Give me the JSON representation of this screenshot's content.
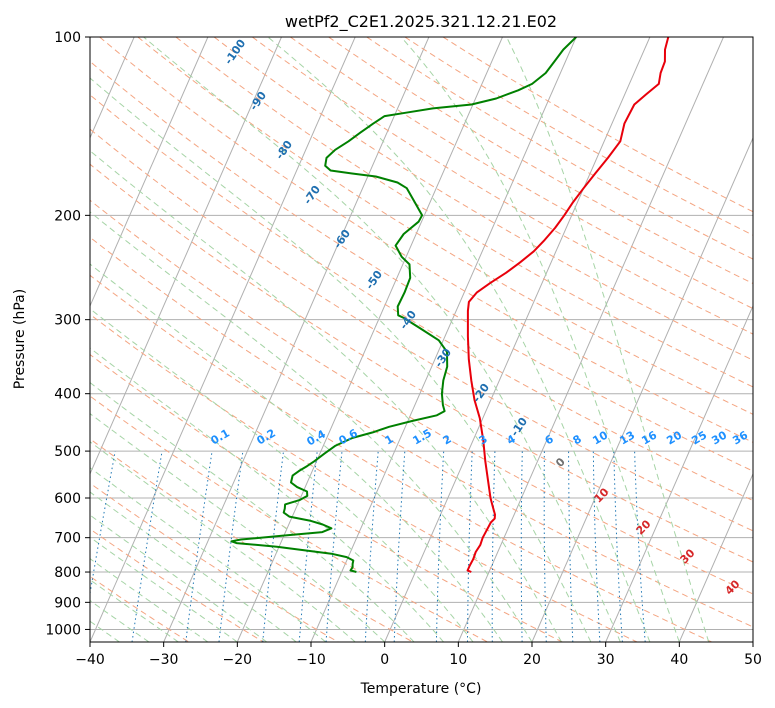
{
  "chart_data": {
    "type": "line",
    "title": "wetPf2_C2E1.2025.321.12.21.E02",
    "xlabel": "Temperature (°C)",
    "ylabel": "Pressure (hPa)",
    "xlim": [
      -40,
      50
    ],
    "ylim": [
      1050,
      100
    ],
    "y_scale": "log",
    "grid": true,
    "x_ticks": [
      -40,
      -30,
      -20,
      -10,
      0,
      10,
      20,
      30,
      40,
      50
    ],
    "y_ticks": [
      100,
      200,
      300,
      400,
      500,
      600,
      700,
      800,
      900,
      1000
    ],
    "x_tick_labels": [
      "−40",
      "−30",
      "−20",
      "−10",
      "0",
      "10",
      "20",
      "30",
      "40",
      "50"
    ],
    "y_tick_labels": [
      "100",
      "200",
      "300",
      "400",
      "500",
      "600",
      "700",
      "800",
      "900",
      "1000"
    ],
    "skew": 36,
    "series": [
      {
        "color": "#e8000b",
        "role": "temperature",
        "points": [
          [
            800,
            7.6
          ],
          [
            795,
            7.0
          ],
          [
            780,
            7.0
          ],
          [
            760,
            7.1
          ],
          [
            740,
            7.0
          ],
          [
            720,
            7.2
          ],
          [
            700,
            7.1
          ],
          [
            680,
            7.2
          ],
          [
            660,
            7.3
          ],
          [
            650,
            7.6
          ],
          [
            640,
            7.4
          ],
          [
            620,
            6.6
          ],
          [
            600,
            5.8
          ],
          [
            560,
            4.4
          ],
          [
            520,
            2.9
          ],
          [
            480,
            1.4
          ],
          [
            440,
            -0.4
          ],
          [
            410,
            -2.2
          ],
          [
            380,
            -3.8
          ],
          [
            350,
            -5.4
          ],
          [
            320,
            -6.9
          ],
          [
            290,
            -8.4
          ],
          [
            280,
            -8.8
          ],
          [
            270,
            -8.3
          ],
          [
            260,
            -7.0
          ],
          [
            250,
            -5.5
          ],
          [
            240,
            -4.2
          ],
          [
            230,
            -3.0
          ],
          [
            220,
            -2.2
          ],
          [
            210,
            -1.5
          ],
          [
            200,
            -1.0
          ],
          [
            190,
            -0.6
          ],
          [
            180,
            0.0
          ],
          [
            170,
            0.7
          ],
          [
            160,
            1.5
          ],
          [
            150,
            2.2
          ],
          [
            140,
            1.7
          ],
          [
            130,
            1.9
          ],
          [
            125,
            2.9
          ],
          [
            120,
            4.0
          ],
          [
            115,
            3.6
          ],
          [
            110,
            3.5
          ],
          [
            105,
            2.8
          ],
          [
            100,
            2.5
          ]
        ]
      },
      {
        "color": "#008000",
        "role": "dewpoint",
        "points": [
          [
            800,
            -8.0
          ],
          [
            795,
            -8.9
          ],
          [
            785,
            -8.8
          ],
          [
            775,
            -9.0
          ],
          [
            765,
            -9.1
          ],
          [
            755,
            -10.2
          ],
          [
            745,
            -12.5
          ],
          [
            735,
            -16.4
          ],
          [
            725,
            -20.3
          ],
          [
            715,
            -26.0
          ],
          [
            710,
            -26.8
          ],
          [
            705,
            -25.6
          ],
          [
            695,
            -20.3
          ],
          [
            685,
            -15.0
          ],
          [
            675,
            -14.0
          ],
          [
            665,
            -15.4
          ],
          [
            655,
            -17.4
          ],
          [
            645,
            -20.4
          ],
          [
            635,
            -21.4
          ],
          [
            625,
            -21.5
          ],
          [
            615,
            -21.7
          ],
          [
            605,
            -20.0
          ],
          [
            595,
            -19.2
          ],
          [
            585,
            -19.5
          ],
          [
            575,
            -21.1
          ],
          [
            565,
            -22.2
          ],
          [
            550,
            -22.4
          ],
          [
            540,
            -21.8
          ],
          [
            530,
            -21.0
          ],
          [
            520,
            -20.3
          ],
          [
            505,
            -19.4
          ],
          [
            490,
            -18.4
          ],
          [
            475,
            -16.5
          ],
          [
            465,
            -14.1
          ],
          [
            455,
            -12.2
          ],
          [
            445,
            -9.5
          ],
          [
            435,
            -6.4
          ],
          [
            428,
            -5.6
          ],
          [
            418,
            -6.2
          ],
          [
            400,
            -7.0
          ],
          [
            380,
            -7.6
          ],
          [
            360,
            -7.9
          ],
          [
            340,
            -8.8
          ],
          [
            325,
            -10.6
          ],
          [
            310,
            -13.9
          ],
          [
            298,
            -16.7
          ],
          [
            295,
            -17.6
          ],
          [
            285,
            -18.2
          ],
          [
            270,
            -18.1
          ],
          [
            255,
            -18.2
          ],
          [
            242,
            -19.1
          ],
          [
            235,
            -20.6
          ],
          [
            225,
            -22.1
          ],
          [
            215,
            -21.7
          ],
          [
            205,
            -20.4
          ],
          [
            200,
            -20.3
          ],
          [
            190,
            -22.1
          ],
          [
            180,
            -24.0
          ],
          [
            176,
            -25.6
          ],
          [
            172,
            -28.9
          ],
          [
            170,
            -32.3
          ],
          [
            168,
            -35.4
          ],
          [
            165,
            -36.4
          ],
          [
            160,
            -36.7
          ],
          [
            155,
            -36.0
          ],
          [
            150,
            -34.7
          ],
          [
            145,
            -33.6
          ],
          [
            140,
            -32.4
          ],
          [
            136,
            -31.3
          ],
          [
            134,
            -28.3
          ],
          [
            132,
            -25.2
          ],
          [
            130,
            -20.2
          ],
          [
            127,
            -17.2
          ],
          [
            123,
            -14.7
          ],
          [
            120,
            -13.2
          ],
          [
            115,
            -12.0
          ],
          [
            110,
            -11.5
          ],
          [
            105,
            -11.0
          ],
          [
            100,
            -10.0
          ]
        ]
      }
    ],
    "mixing_ratio_labels": [
      "0.1",
      "0.2",
      "0.4",
      "0.6",
      "1",
      "1.5",
      "2",
      "3",
      "4",
      "6",
      "8",
      "10",
      "13",
      "16",
      "20",
      "25",
      "30",
      "36"
    ],
    "dry_adiabat_labels": [
      "-100",
      "-90",
      "-80",
      "-70",
      "-60",
      "-50",
      "-40",
      "-30",
      "-20",
      "-10"
    ],
    "moist_adiabat_labels": [
      "0",
      "10",
      "20",
      "30",
      "40"
    ],
    "colors": {
      "temperature": "#e8000b",
      "dewpoint": "#008000",
      "isotherm": "#b0b0b0",
      "dry_adiabat": "#f4a582",
      "moist_adiabat": "#a6d4a6",
      "mixing_ratio": "#1f77b4",
      "mixing_label": "#1e90ff",
      "dry_label": "#1f6fb0",
      "moist_label": "#d62728"
    }
  }
}
